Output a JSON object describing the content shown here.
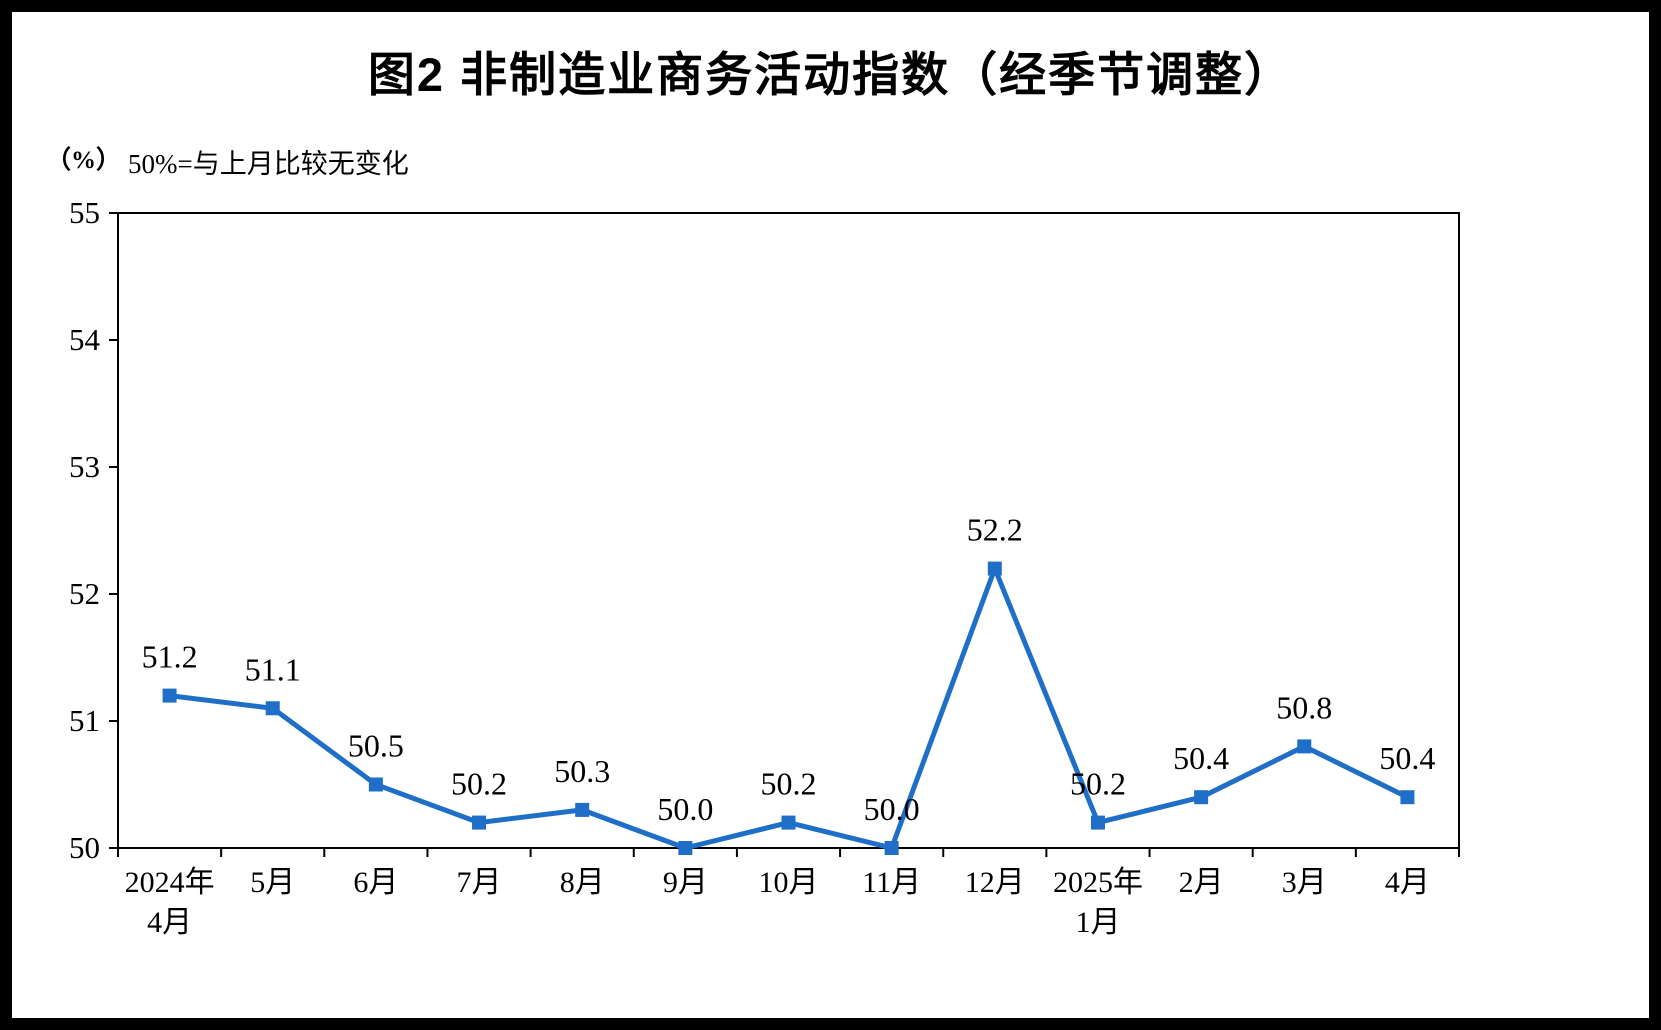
{
  "title": "图2 非制造业商务活动指数（经季节调整）",
  "unit_label": "（%）",
  "note": "50%=与上月比较无变化",
  "chart_data": {
    "type": "line",
    "title": "图2 非制造业商务活动指数（经季节调整）",
    "xlabel": "",
    "ylabel": "（%）",
    "reference_note": "50%=与上月比较无变化",
    "categories": [
      "2024年\n4月",
      "5月",
      "6月",
      "7月",
      "8月",
      "9月",
      "10月",
      "11月",
      "12月",
      "2025年\n1月",
      "2月",
      "3月",
      "4月"
    ],
    "values": [
      51.2,
      51.1,
      50.5,
      50.2,
      50.3,
      50.0,
      50.2,
      50.0,
      52.2,
      50.2,
      50.4,
      50.8,
      50.4
    ],
    "ylim": [
      50,
      55
    ],
    "ytick_step": 1,
    "yticks": [
      50,
      51,
      52,
      53,
      54,
      55
    ],
    "grid": false,
    "legend_position": "none",
    "line_color": "#1f6fc9",
    "marker": "square",
    "text_color": "#000000",
    "background_color": "#ffffff",
    "border_color": "#000000"
  }
}
